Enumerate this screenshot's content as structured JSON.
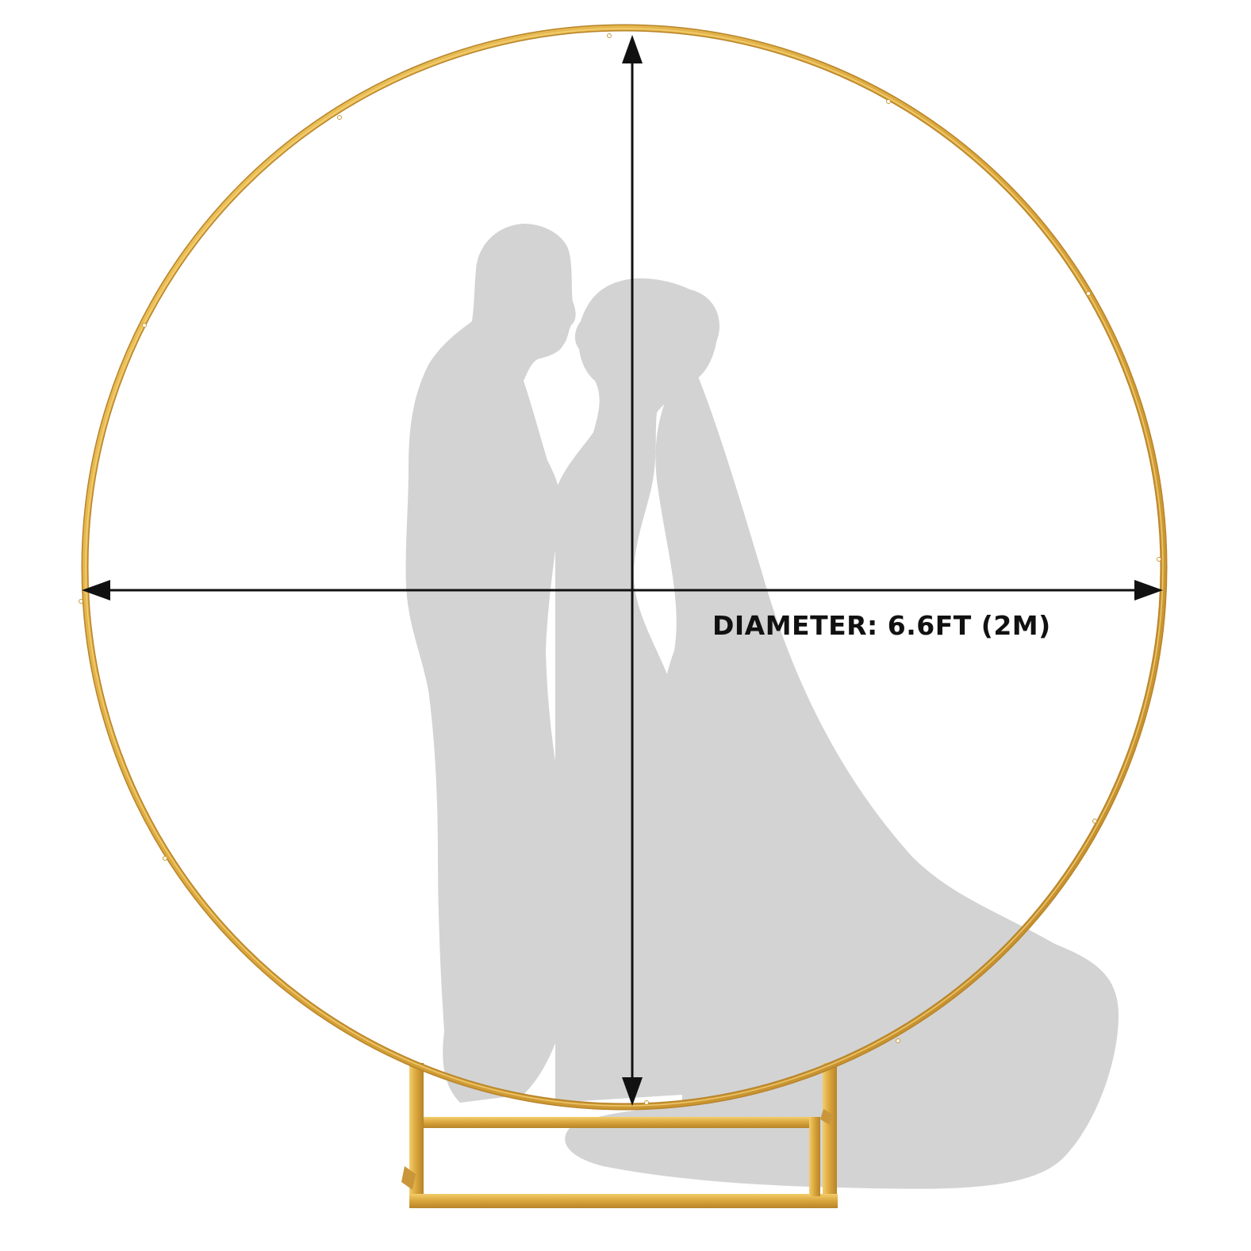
{
  "product": {
    "dimension_label": "DIAMETER: 6.6FT (2M)"
  },
  "colors": {
    "background": "#ffffff",
    "hoop_gold": "#d9a53a",
    "hoop_highlight": "#f0c760",
    "hoop_shadow": "#b7842a",
    "silhouette": "#d3d3d3",
    "dimension_lines": "#111111",
    "label_text": "#111111"
  },
  "icons": {
    "arrow_heads": "triangle-arrow-icon",
    "silhouette": "couple-silhouette-icon"
  }
}
